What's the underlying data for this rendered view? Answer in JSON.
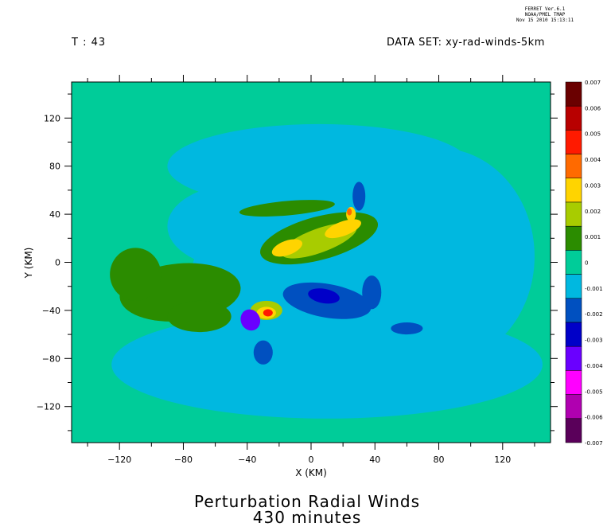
{
  "header": {
    "ferret_line1": "FERRET  Ver.6.1",
    "ferret_line2": "NOAA/PMEL TMAP",
    "ferret_line3": "Nov 15 2010 15:13:11",
    "time_label": "T : 43",
    "dataset_label": "DATA SET: xy-rad-winds-5km"
  },
  "chart_data": {
    "type": "heatmap",
    "title": "Perturbation Radial Winds",
    "subtitle": "430 minutes",
    "xlabel": "X (KM)",
    "ylabel": "Y (KM)",
    "xlim": [
      -150,
      150
    ],
    "ylim": [
      -150,
      150
    ],
    "xticks": [
      -120,
      -80,
      -40,
      0,
      40,
      80,
      120
    ],
    "yticks": [
      -120,
      -80,
      -40,
      0,
      40,
      80,
      120
    ],
    "colorbar": {
      "levels": [
        0.007,
        0.006,
        0.005,
        0.004,
        0.003,
        0.002,
        0.001,
        0,
        -0.001,
        -0.002,
        -0.003,
        -0.004,
        -0.005,
        -0.006,
        -0.007
      ],
      "level_labels": [
        "0.007",
        "0.006",
        "0.005",
        "0.004",
        "0.003",
        "0.002",
        "0.001",
        "0",
        "-0.001",
        "-0.002",
        "-0.003",
        "-0.004",
        "-0.005",
        "-0.006",
        "-0.007"
      ],
      "colors": [
        "#6a0000",
        "#b80000",
        "#ff1a00",
        "#ff6a00",
        "#ffd400",
        "#a8cc00",
        "#2b8c00",
        "#00cc99",
        "#00b8e0",
        "#0050c0",
        "#0000c8",
        "#6a00ff",
        "#ff00ff",
        "#b000b0",
        "#5a005a"
      ]
    },
    "background_value_color": "#00cc99",
    "features": [
      {
        "desc": "negative outer ring",
        "color": "#00b8e0"
      },
      {
        "desc": "positive western blob",
        "color": "#2b8c00"
      },
      {
        "desc": "positive north-east core",
        "color": "#a8cc00"
      },
      {
        "desc": "negative south-central",
        "color": "#0050c0"
      },
      {
        "desc": "strong positive spot",
        "color": "#ff1a00"
      },
      {
        "desc": "strong negative spot",
        "color": "#6a00ff"
      }
    ]
  }
}
